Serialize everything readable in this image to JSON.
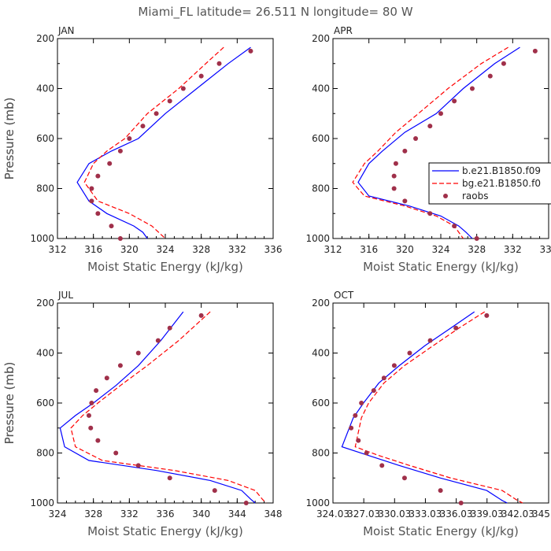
{
  "page": {
    "title": "Miami_FL   latitude= 26.511 N longitude= 80 W"
  },
  "legend": {
    "entries": [
      {
        "label": "b.e21.B1850.f09",
        "color": "#0000ff",
        "style": "solid"
      },
      {
        "label": "bg.e21.B1850.f0",
        "color": "#ff0000",
        "style": "dashed"
      },
      {
        "label": "raobs",
        "color": "#a0304a",
        "style": "dot"
      }
    ],
    "placement": "right, inside APR panel"
  },
  "chart_data": [
    {
      "type": "line",
      "panel_label": "JAN",
      "xlabel": "Moist Static Energy (kJ/kg)",
      "ylabel": "Pressure (mb)",
      "xlim": [
        312,
        336
      ],
      "ylim": [
        1000,
        200
      ],
      "y_inverted": true,
      "xticks": [
        "312",
        "316",
        "320",
        "324",
        "328",
        "332",
        "336"
      ],
      "yticks": [
        "200",
        "400",
        "600",
        "800",
        "1000"
      ],
      "grid": false,
      "series": [
        {
          "name": "b.e21.B1850.f09",
          "color": "#0000ff",
          "style": "solid",
          "points": [
            [
              333.5,
              235
            ],
            [
              331,
              300
            ],
            [
              327.5,
              400
            ],
            [
              324,
              500
            ],
            [
              321,
              600
            ],
            [
              318,
              650
            ],
            [
              315.5,
              700
            ],
            [
              314.2,
              775
            ],
            [
              315.5,
              850
            ],
            [
              317.5,
              900
            ],
            [
              320.5,
              950
            ],
            [
              321.5,
              975
            ],
            [
              322,
              1000
            ]
          ]
        },
        {
          "name": "bg.e21.B1850.f0",
          "color": "#ff0000",
          "style": "dashed",
          "points": [
            [
              330.5,
              235
            ],
            [
              328.5,
              300
            ],
            [
              325.5,
              400
            ],
            [
              322,
              500
            ],
            [
              319.5,
              600
            ],
            [
              317.5,
              650
            ],
            [
              316,
              700
            ],
            [
              315,
              775
            ],
            [
              316.5,
              850
            ],
            [
              320,
              900
            ],
            [
              322.5,
              950
            ],
            [
              324,
              1000
            ]
          ]
        },
        {
          "name": "raobs",
          "color": "#a0304a",
          "style": "dot",
          "points": [
            [
              333.5,
              250
            ],
            [
              330,
              300
            ],
            [
              328,
              350
            ],
            [
              326,
              400
            ],
            [
              324.5,
              450
            ],
            [
              323,
              500
            ],
            [
              321.5,
              550
            ],
            [
              320,
              600
            ],
            [
              319,
              650
            ],
            [
              317.8,
              700
            ],
            [
              316.5,
              750
            ],
            [
              315.8,
              800
            ],
            [
              315.8,
              850
            ],
            [
              316.5,
              900
            ],
            [
              318,
              950
            ],
            [
              319,
              1000
            ]
          ]
        }
      ]
    },
    {
      "type": "line",
      "panel_label": "APR",
      "xlabel": "Moist Static Energy (kJ/kg)",
      "ylabel": "Pressure (mb)",
      "xlim": [
        312,
        336
      ],
      "ylim": [
        1000,
        200
      ],
      "y_inverted": true,
      "xticks": [
        "312",
        "316",
        "320",
        "324",
        "328",
        "332",
        "336"
      ],
      "yticks": [
        "200",
        "400",
        "600",
        "800",
        "1000"
      ],
      "grid": false,
      "series": [
        {
          "name": "b.e21.B1850.f09",
          "color": "#0000ff",
          "style": "solid",
          "points": [
            [
              332.8,
              235
            ],
            [
              330,
              300
            ],
            [
              326.5,
              400
            ],
            [
              323.5,
              500
            ],
            [
              320,
              575
            ],
            [
              317.5,
              650
            ],
            [
              316,
              700
            ],
            [
              314.8,
              775
            ],
            [
              316,
              830
            ],
            [
              320.5,
              870
            ],
            [
              324,
              910
            ],
            [
              326,
              950
            ],
            [
              326.8,
              975
            ],
            [
              327.5,
              1000
            ]
          ]
        },
        {
          "name": "bg.e21.B1850.f0",
          "color": "#ff0000",
          "style": "dashed",
          "points": [
            [
              331.5,
              235
            ],
            [
              328.5,
              300
            ],
            [
              324.8,
              400
            ],
            [
              321.5,
              500
            ],
            [
              319,
              575
            ],
            [
              317,
              650
            ],
            [
              315.5,
              700
            ],
            [
              314.2,
              775
            ],
            [
              315.5,
              830
            ],
            [
              320,
              870
            ],
            [
              323.5,
              910
            ],
            [
              325.5,
              950
            ],
            [
              326.5,
              1000
            ]
          ]
        },
        {
          "name": "raobs",
          "color": "#a0304a",
          "style": "dot",
          "points": [
            [
              334.5,
              250
            ],
            [
              331,
              300
            ],
            [
              329.5,
              350
            ],
            [
              327.5,
              400
            ],
            [
              325.5,
              450
            ],
            [
              324,
              500
            ],
            [
              322.8,
              550
            ],
            [
              321.2,
              600
            ],
            [
              320,
              650
            ],
            [
              319,
              700
            ],
            [
              318.8,
              750
            ],
            [
              318.8,
              800
            ],
            [
              320,
              850
            ],
            [
              322.8,
              900
            ],
            [
              325.5,
              950
            ],
            [
              328,
              1000
            ]
          ]
        }
      ]
    },
    {
      "type": "line",
      "panel_label": "JUL",
      "xlabel": "Moist Static Energy (kJ/kg)",
      "ylabel": "Pressure (mb)",
      "xlim": [
        324,
        348
      ],
      "ylim": [
        1000,
        200
      ],
      "y_inverted": true,
      "xticks": [
        "324",
        "328",
        "332",
        "336",
        "340",
        "344",
        "348"
      ],
      "yticks": [
        "200",
        "400",
        "600",
        "800",
        "1000"
      ],
      "grid": false,
      "series": [
        {
          "name": "b.e21.B1850.f09",
          "color": "#0000ff",
          "style": "solid",
          "points": [
            [
              338,
              235
            ],
            [
              335.5,
              350
            ],
            [
              333,
              450
            ],
            [
              330.5,
              530
            ],
            [
              328,
              600
            ],
            [
              326,
              650
            ],
            [
              324.3,
              700
            ],
            [
              324.8,
              775
            ],
            [
              327.5,
              830
            ],
            [
              335,
              870
            ],
            [
              341,
              910
            ],
            [
              344.5,
              950
            ],
            [
              345.5,
              985
            ],
            [
              346,
              1000
            ]
          ]
        },
        {
          "name": "bg.e21.B1850.f0",
          "color": "#ff0000",
          "style": "dashed",
          "points": [
            [
              341,
              235
            ],
            [
              337.5,
              350
            ],
            [
              334,
              450
            ],
            [
              331,
              530
            ],
            [
              328.5,
              600
            ],
            [
              326.8,
              650
            ],
            [
              325.5,
              700
            ],
            [
              326,
              775
            ],
            [
              329,
              830
            ],
            [
              337,
              870
            ],
            [
              343,
              910
            ],
            [
              346,
              950
            ],
            [
              346.8,
              985
            ],
            [
              347.2,
              1000
            ]
          ]
        },
        {
          "name": "raobs",
          "color": "#a0304a",
          "style": "dot",
          "points": [
            [
              340,
              250
            ],
            [
              336.5,
              300
            ],
            [
              335.2,
              350
            ],
            [
              333,
              400
            ],
            [
              331,
              450
            ],
            [
              329.5,
              500
            ],
            [
              328.3,
              550
            ],
            [
              327.8,
              600
            ],
            [
              327.5,
              650
            ],
            [
              327.7,
              700
            ],
            [
              328.5,
              750
            ],
            [
              330.5,
              800
            ],
            [
              333,
              850
            ],
            [
              336.5,
              900
            ],
            [
              341.5,
              950
            ],
            [
              345,
              1000
            ]
          ]
        }
      ]
    },
    {
      "type": "line",
      "panel_label": "OCT",
      "xlabel": "Moist Static Energy (kJ/kg)",
      "ylabel": "Pressure (mb)",
      "xlim": [
        324.03,
        345.03
      ],
      "ylim": [
        1000,
        200
      ],
      "y_inverted": true,
      "xticks": [
        "324.03",
        "327.03",
        "330.03",
        "333.03",
        "336.03",
        "339.03",
        "342.03",
        "345.03"
      ],
      "yticks": [
        "200",
        "400",
        "600",
        "800",
        "1000"
      ],
      "grid": false,
      "series": [
        {
          "name": "b.e21.B1850.f09",
          "color": "#0000ff",
          "style": "solid",
          "points": [
            [
              337.8,
              235
            ],
            [
              335.5,
              300
            ],
            [
              333,
              370
            ],
            [
              330.5,
              450
            ],
            [
              328.5,
              520
            ],
            [
              327,
              600
            ],
            [
              326,
              660
            ],
            [
              324.9,
              775
            ],
            [
              327.5,
              810
            ],
            [
              330.5,
              850
            ],
            [
              334.5,
              900
            ],
            [
              339,
              950
            ],
            [
              340.5,
              990
            ],
            [
              341,
              1000
            ]
          ]
        },
        {
          "name": "bg.e21.B1850.f0",
          "color": "#ff0000",
          "style": "dashed",
          "points": [
            [
              338.8,
              235
            ],
            [
              336.3,
              300
            ],
            [
              333.8,
              370
            ],
            [
              331,
              450
            ],
            [
              329,
              520
            ],
            [
              327.5,
              600
            ],
            [
              326.8,
              660
            ],
            [
              326.2,
              775
            ],
            [
              328.5,
              810
            ],
            [
              331.5,
              850
            ],
            [
              335.5,
              900
            ],
            [
              340.5,
              950
            ],
            [
              342,
              990
            ],
            [
              342.5,
              1000
            ]
          ]
        },
        {
          "name": "raobs",
          "color": "#a0304a",
          "style": "dot",
          "points": [
            [
              339,
              250
            ],
            [
              336,
              300
            ],
            [
              333.5,
              350
            ],
            [
              331.5,
              400
            ],
            [
              330,
              450
            ],
            [
              329,
              500
            ],
            [
              328,
              550
            ],
            [
              326.8,
              600
            ],
            [
              326.2,
              650
            ],
            [
              325.8,
              700
            ],
            [
              326.5,
              750
            ],
            [
              327.3,
              800
            ],
            [
              328.8,
              850
            ],
            [
              331,
              900
            ],
            [
              334.5,
              950
            ],
            [
              336.5,
              1000
            ]
          ]
        }
      ]
    }
  ]
}
